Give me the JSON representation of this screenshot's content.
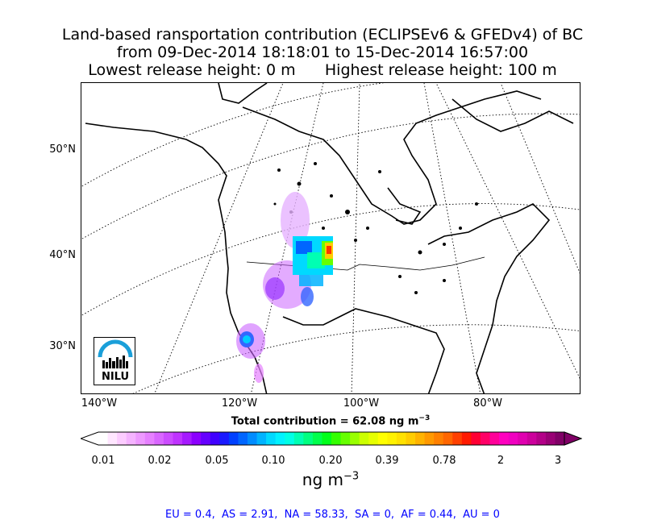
{
  "title": {
    "line1": "Land-based ransportation contribution (ECLIPSEv6 & GFEDv4) of BC",
    "line2": "from 09-Dec-2014 18:18:01 to 15-Dec-2014 16:57:00",
    "line3": "Lowest release height: 0 m      Highest release height: 100 m"
  },
  "map": {
    "lat_labels": [
      "50°N",
      "40°N",
      "30°N"
    ],
    "lon_labels": [
      "140°W",
      "120°W",
      "100°W",
      "80°W"
    ],
    "logo_text": "NILU",
    "logo_color": "#1a9fd9"
  },
  "total_contribution": "Total contribution = 62.08 ng m",
  "total_exp": "−3",
  "colorbar": {
    "tick_labels": [
      "0.01",
      "0.02",
      "0.05",
      "0.10",
      "0.20",
      "0.39",
      "0.78",
      "2",
      "3"
    ],
    "colors": [
      "#ffffff",
      "#ffe6ff",
      "#fcccff",
      "#f5b3ff",
      "#ee99ff",
      "#e680ff",
      "#d966ff",
      "#cc4cff",
      "#bf33ff",
      "#a61aff",
      "#8c00ff",
      "#6600ff",
      "#4000ff",
      "#1a1aff",
      "#0040ff",
      "#0066ff",
      "#008cff",
      "#00b3ff",
      "#00d9ff",
      "#00f2ff",
      "#00ffe6",
      "#00ffb3",
      "#00ff80",
      "#00ff4c",
      "#00ff1a",
      "#33ff00",
      "#66ff00",
      "#99ff00",
      "#ccff00",
      "#e6ff00",
      "#ffff00",
      "#fff200",
      "#ffe100",
      "#ffcc00",
      "#ffb300",
      "#ff9900",
      "#ff8000",
      "#ff6600",
      "#ff4000",
      "#ff1a00",
      "#ff0033",
      "#ff0066",
      "#ff0099",
      "#ff00bf",
      "#f000c0",
      "#e000b0",
      "#cc009c",
      "#b30088",
      "#990075",
      "#800066"
    ],
    "units_text": "ng m",
    "units_exp": "−3"
  },
  "regions_text": "EU = 0.4,  AS = 2.91,  NA = 58.33,  SA = 0,  AF = 0.44,  AU = 0"
}
